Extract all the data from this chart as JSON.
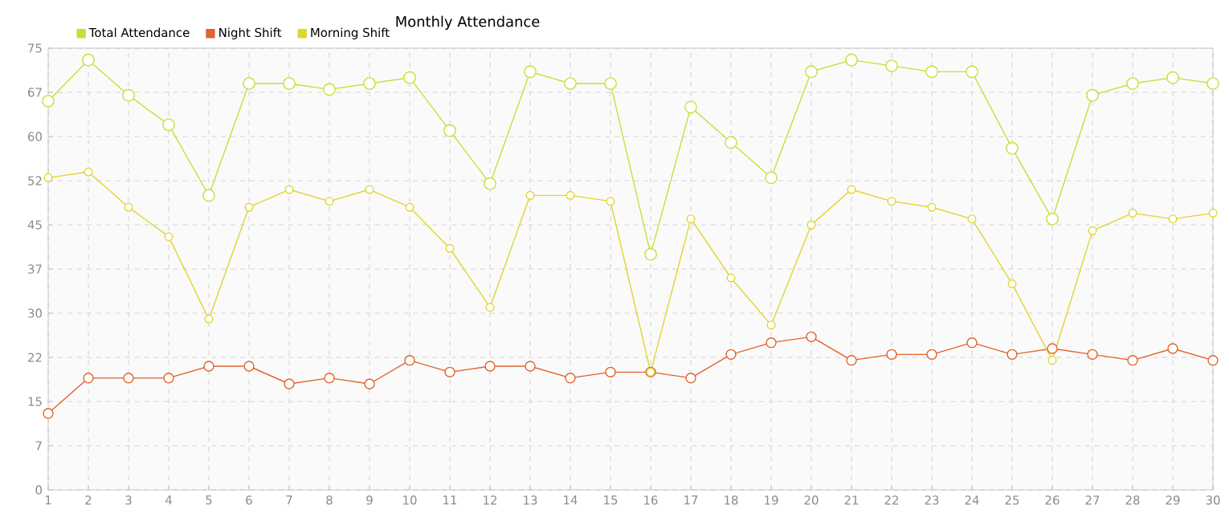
{
  "chart_data": {
    "type": "line",
    "title": "Monthly Attendance",
    "categories": [
      "1",
      "2",
      "3",
      "4",
      "5",
      "6",
      "7",
      "8",
      "9",
      "10",
      "11",
      "12",
      "13",
      "14",
      "15",
      "16",
      "17",
      "18",
      "19",
      "20",
      "21",
      "22",
      "23",
      "24",
      "25",
      "26",
      "27",
      "28",
      "29",
      "30"
    ],
    "series": [
      {
        "name": "Total Attendance",
        "color": "#c5e03a",
        "values": [
          66,
          73,
          67,
          62,
          50,
          69,
          69,
          68,
          69,
          70,
          61,
          52,
          71,
          69,
          69,
          40,
          65,
          59,
          53,
          71,
          73,
          72,
          71,
          71,
          58,
          46,
          67,
          69,
          70,
          69
        ]
      },
      {
        "name": "Night Shift",
        "color": "#e0642e",
        "values": [
          13,
          19,
          19,
          19,
          21,
          21,
          18,
          19,
          18,
          22,
          20,
          21,
          21,
          19,
          20,
          20,
          19,
          23,
          25,
          26,
          22,
          23,
          23,
          25,
          23,
          24,
          23,
          22,
          24,
          22
        ]
      },
      {
        "name": "Morning Shift",
        "color": "#e0d52e",
        "values": [
          53,
          54,
          48,
          43,
          29,
          48,
          51,
          49,
          51,
          48,
          41,
          31,
          50,
          50,
          49,
          20,
          46,
          36,
          28,
          45,
          51,
          49,
          48,
          46,
          35,
          22,
          44,
          47,
          46,
          47
        ]
      }
    ],
    "ylim": [
      0,
      75
    ],
    "yticks": [
      0,
      {
        "value": 7.5,
        "label": "7"
      },
      15,
      {
        "value": 22.5,
        "label": "22"
      },
      30,
      {
        "value": 37.5,
        "label": "37"
      },
      45,
      {
        "value": 52.5,
        "label": "52"
      },
      60,
      {
        "value": 67.5,
        "label": "67"
      },
      75
    ],
    "grid": true,
    "legend": "top left",
    "marker": "circle",
    "line_style": "solid"
  }
}
